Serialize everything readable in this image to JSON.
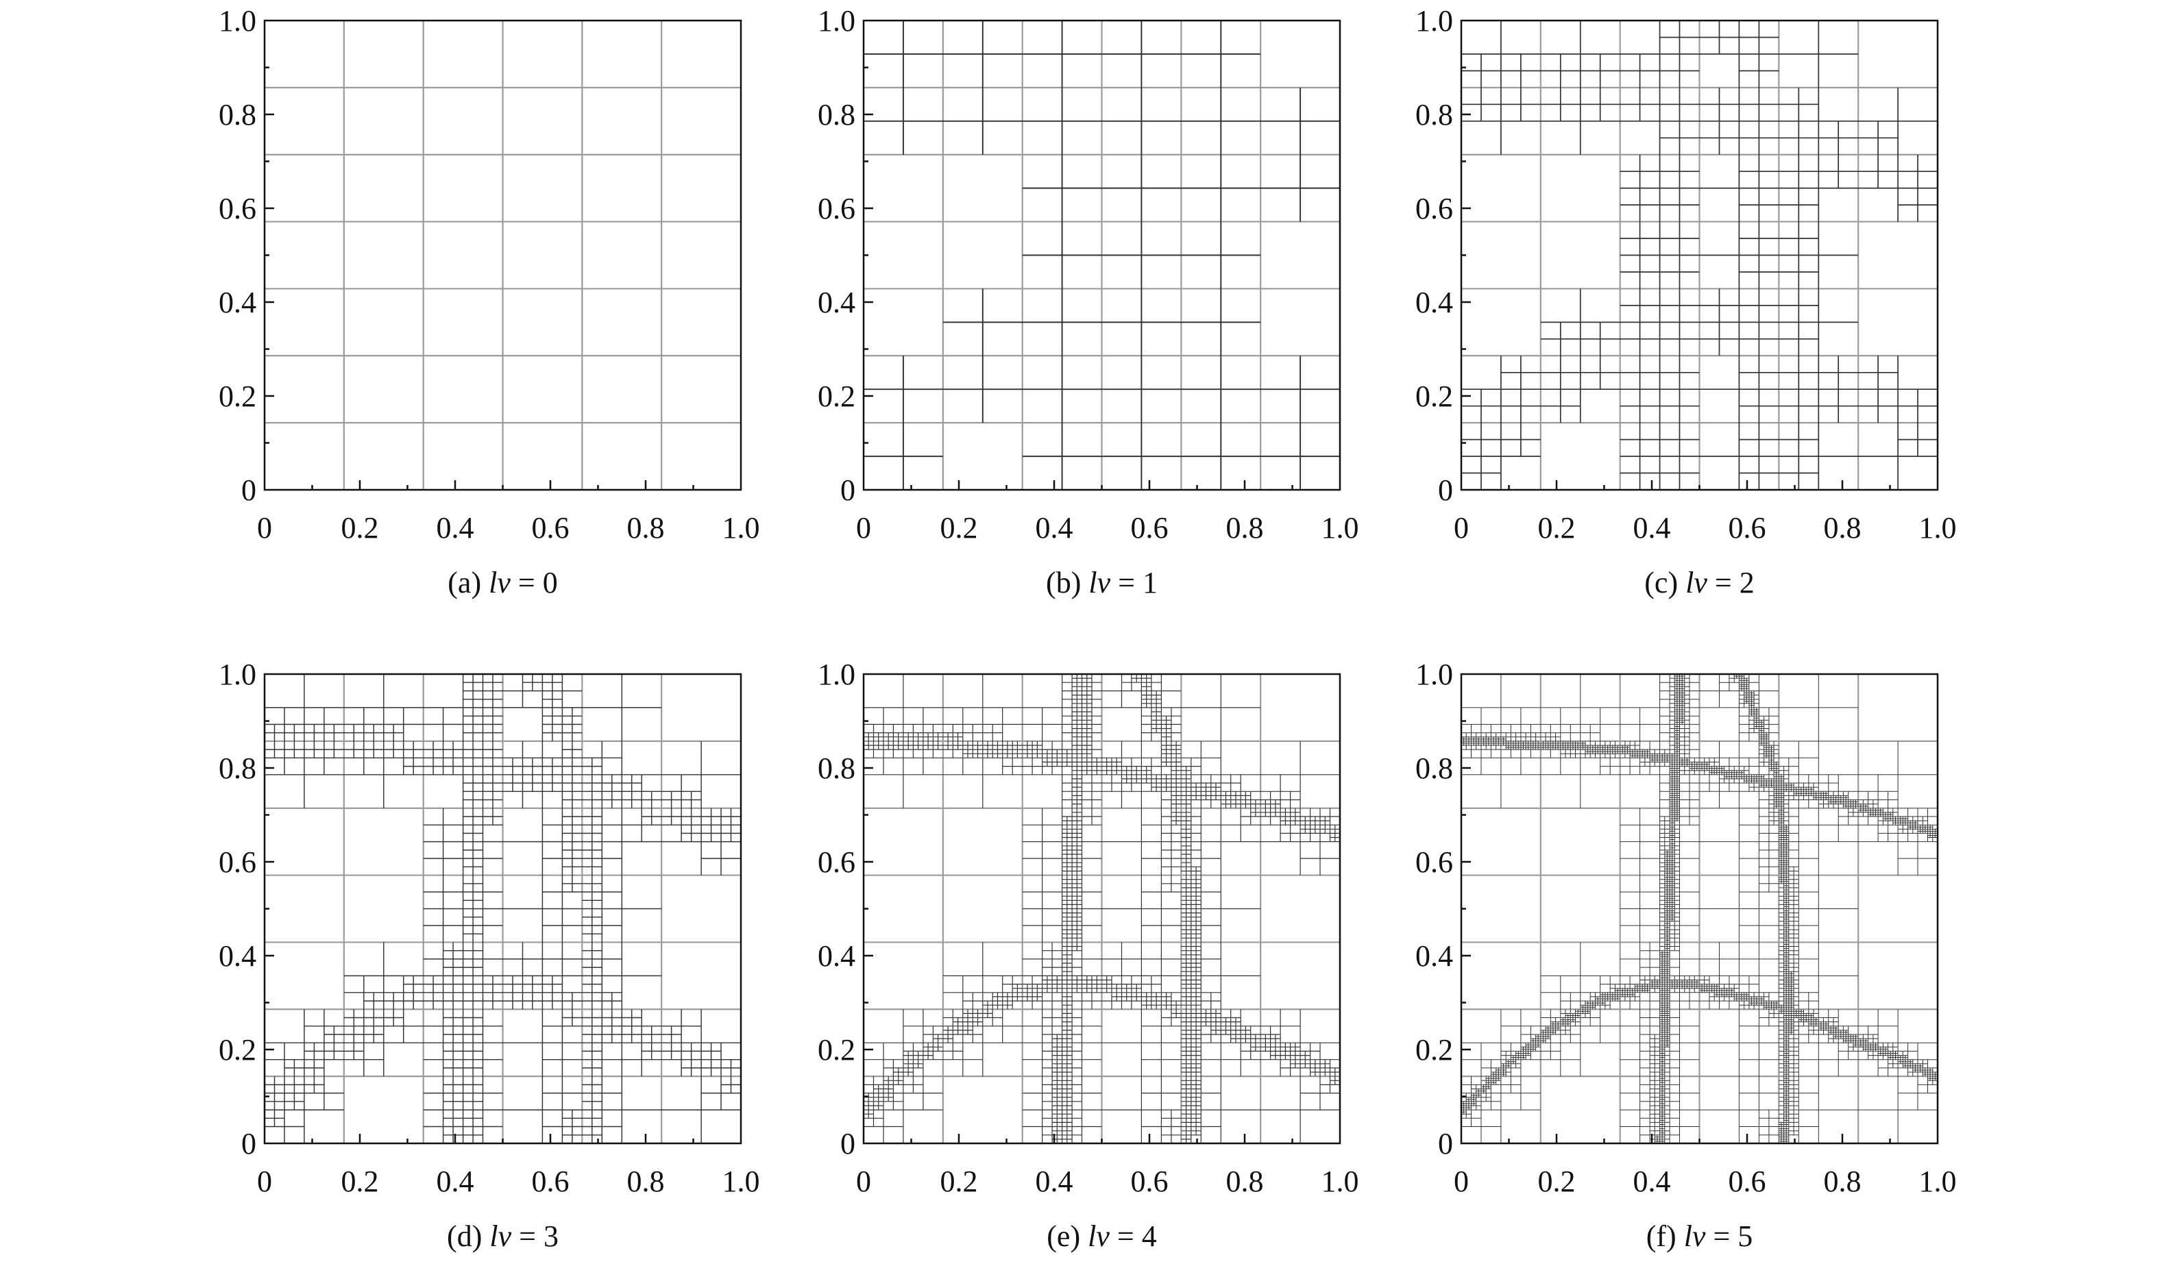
{
  "figure": {
    "x_ticks": [
      "0",
      "0.2",
      "0.4",
      "0.6",
      "0.8",
      "1.0"
    ],
    "y_ticks": [
      "0",
      "0.2",
      "0.4",
      "0.6",
      "0.8",
      "1.0"
    ],
    "base_grid": {
      "columns": 6,
      "rows": 7
    },
    "colors": {
      "base_grid": "#9a9a9a",
      "refined_grid": "#333333",
      "axes": "#111111"
    },
    "panels": [
      {
        "label": "(a)",
        "var": "lv",
        "eq": "= 0",
        "level": 0
      },
      {
        "label": "(b)",
        "var": "lv",
        "eq": "= 1",
        "level": 1
      },
      {
        "label": "(c)",
        "var": "lv",
        "eq": "= 2",
        "level": 2
      },
      {
        "label": "(d)",
        "var": "lv",
        "eq": "= 3",
        "level": 3
      },
      {
        "label": "(e)",
        "var": "lv",
        "eq": "= 4",
        "level": 4
      },
      {
        "label": "(f)",
        "var": "lv",
        "eq": "= 5",
        "level": 5
      }
    ]
  }
}
